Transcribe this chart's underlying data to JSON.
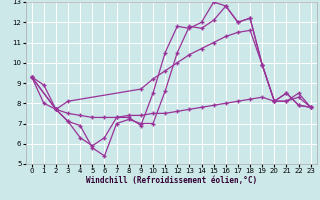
{
  "xlabel": "Windchill (Refroidissement éolien,°C)",
  "bg_color": "#cce8e8",
  "line_color": "#993399",
  "grid_color": "#ffffff",
  "xlim": [
    -0.5,
    23.5
  ],
  "ylim": [
    5,
    13
  ],
  "xticks": [
    0,
    1,
    2,
    3,
    4,
    5,
    6,
    7,
    8,
    9,
    10,
    11,
    12,
    13,
    14,
    15,
    16,
    17,
    18,
    19,
    20,
    21,
    22,
    23
  ],
  "yticks": [
    5,
    6,
    7,
    8,
    9,
    10,
    11,
    12,
    13
  ],
  "lines": [
    {
      "x": [
        0,
        1,
        2,
        3,
        4,
        5,
        6,
        7,
        8,
        9,
        10,
        11,
        12,
        13,
        14,
        15,
        16,
        17,
        18,
        19,
        20,
        21,
        22,
        23
      ],
      "y": [
        9.3,
        8.9,
        7.7,
        7.1,
        6.3,
        5.9,
        6.3,
        7.3,
        7.3,
        6.9,
        8.5,
        10.5,
        11.8,
        11.7,
        12.0,
        13.0,
        12.8,
        12.0,
        12.2,
        9.9,
        8.1,
        8.5,
        7.9,
        7.8
      ]
    },
    {
      "x": [
        0,
        1,
        2,
        3,
        4,
        5,
        6,
        7,
        8,
        9,
        10,
        11,
        12,
        13,
        14,
        15,
        16,
        17,
        18,
        19,
        20,
        21,
        22,
        23
      ],
      "y": [
        9.3,
        8.0,
        7.7,
        7.1,
        6.9,
        5.8,
        5.4,
        7.0,
        7.2,
        7.0,
        7.0,
        8.6,
        10.5,
        11.8,
        11.7,
        12.1,
        12.8,
        12.0,
        12.2,
        9.9,
        8.1,
        8.5,
        7.9,
        7.8
      ]
    },
    {
      "x": [
        0,
        2,
        3,
        9,
        10,
        11,
        12,
        13,
        14,
        15,
        16,
        17,
        18,
        19,
        20,
        21,
        22,
        23
      ],
      "y": [
        9.3,
        7.7,
        8.1,
        8.7,
        9.2,
        9.6,
        10.0,
        10.4,
        10.7,
        11.0,
        11.3,
        11.5,
        11.6,
        9.9,
        8.1,
        8.1,
        8.5,
        7.8
      ]
    },
    {
      "x": [
        0,
        2,
        3,
        4,
        5,
        6,
        7,
        8,
        9,
        10,
        11,
        12,
        13,
        14,
        15,
        16,
        17,
        18,
        19,
        20,
        21,
        22,
        23
      ],
      "y": [
        9.3,
        7.7,
        7.5,
        7.4,
        7.3,
        7.3,
        7.3,
        7.4,
        7.4,
        7.5,
        7.5,
        7.6,
        7.7,
        7.8,
        7.9,
        8.0,
        8.1,
        8.2,
        8.3,
        8.1,
        8.1,
        8.3,
        7.8
      ]
    }
  ]
}
